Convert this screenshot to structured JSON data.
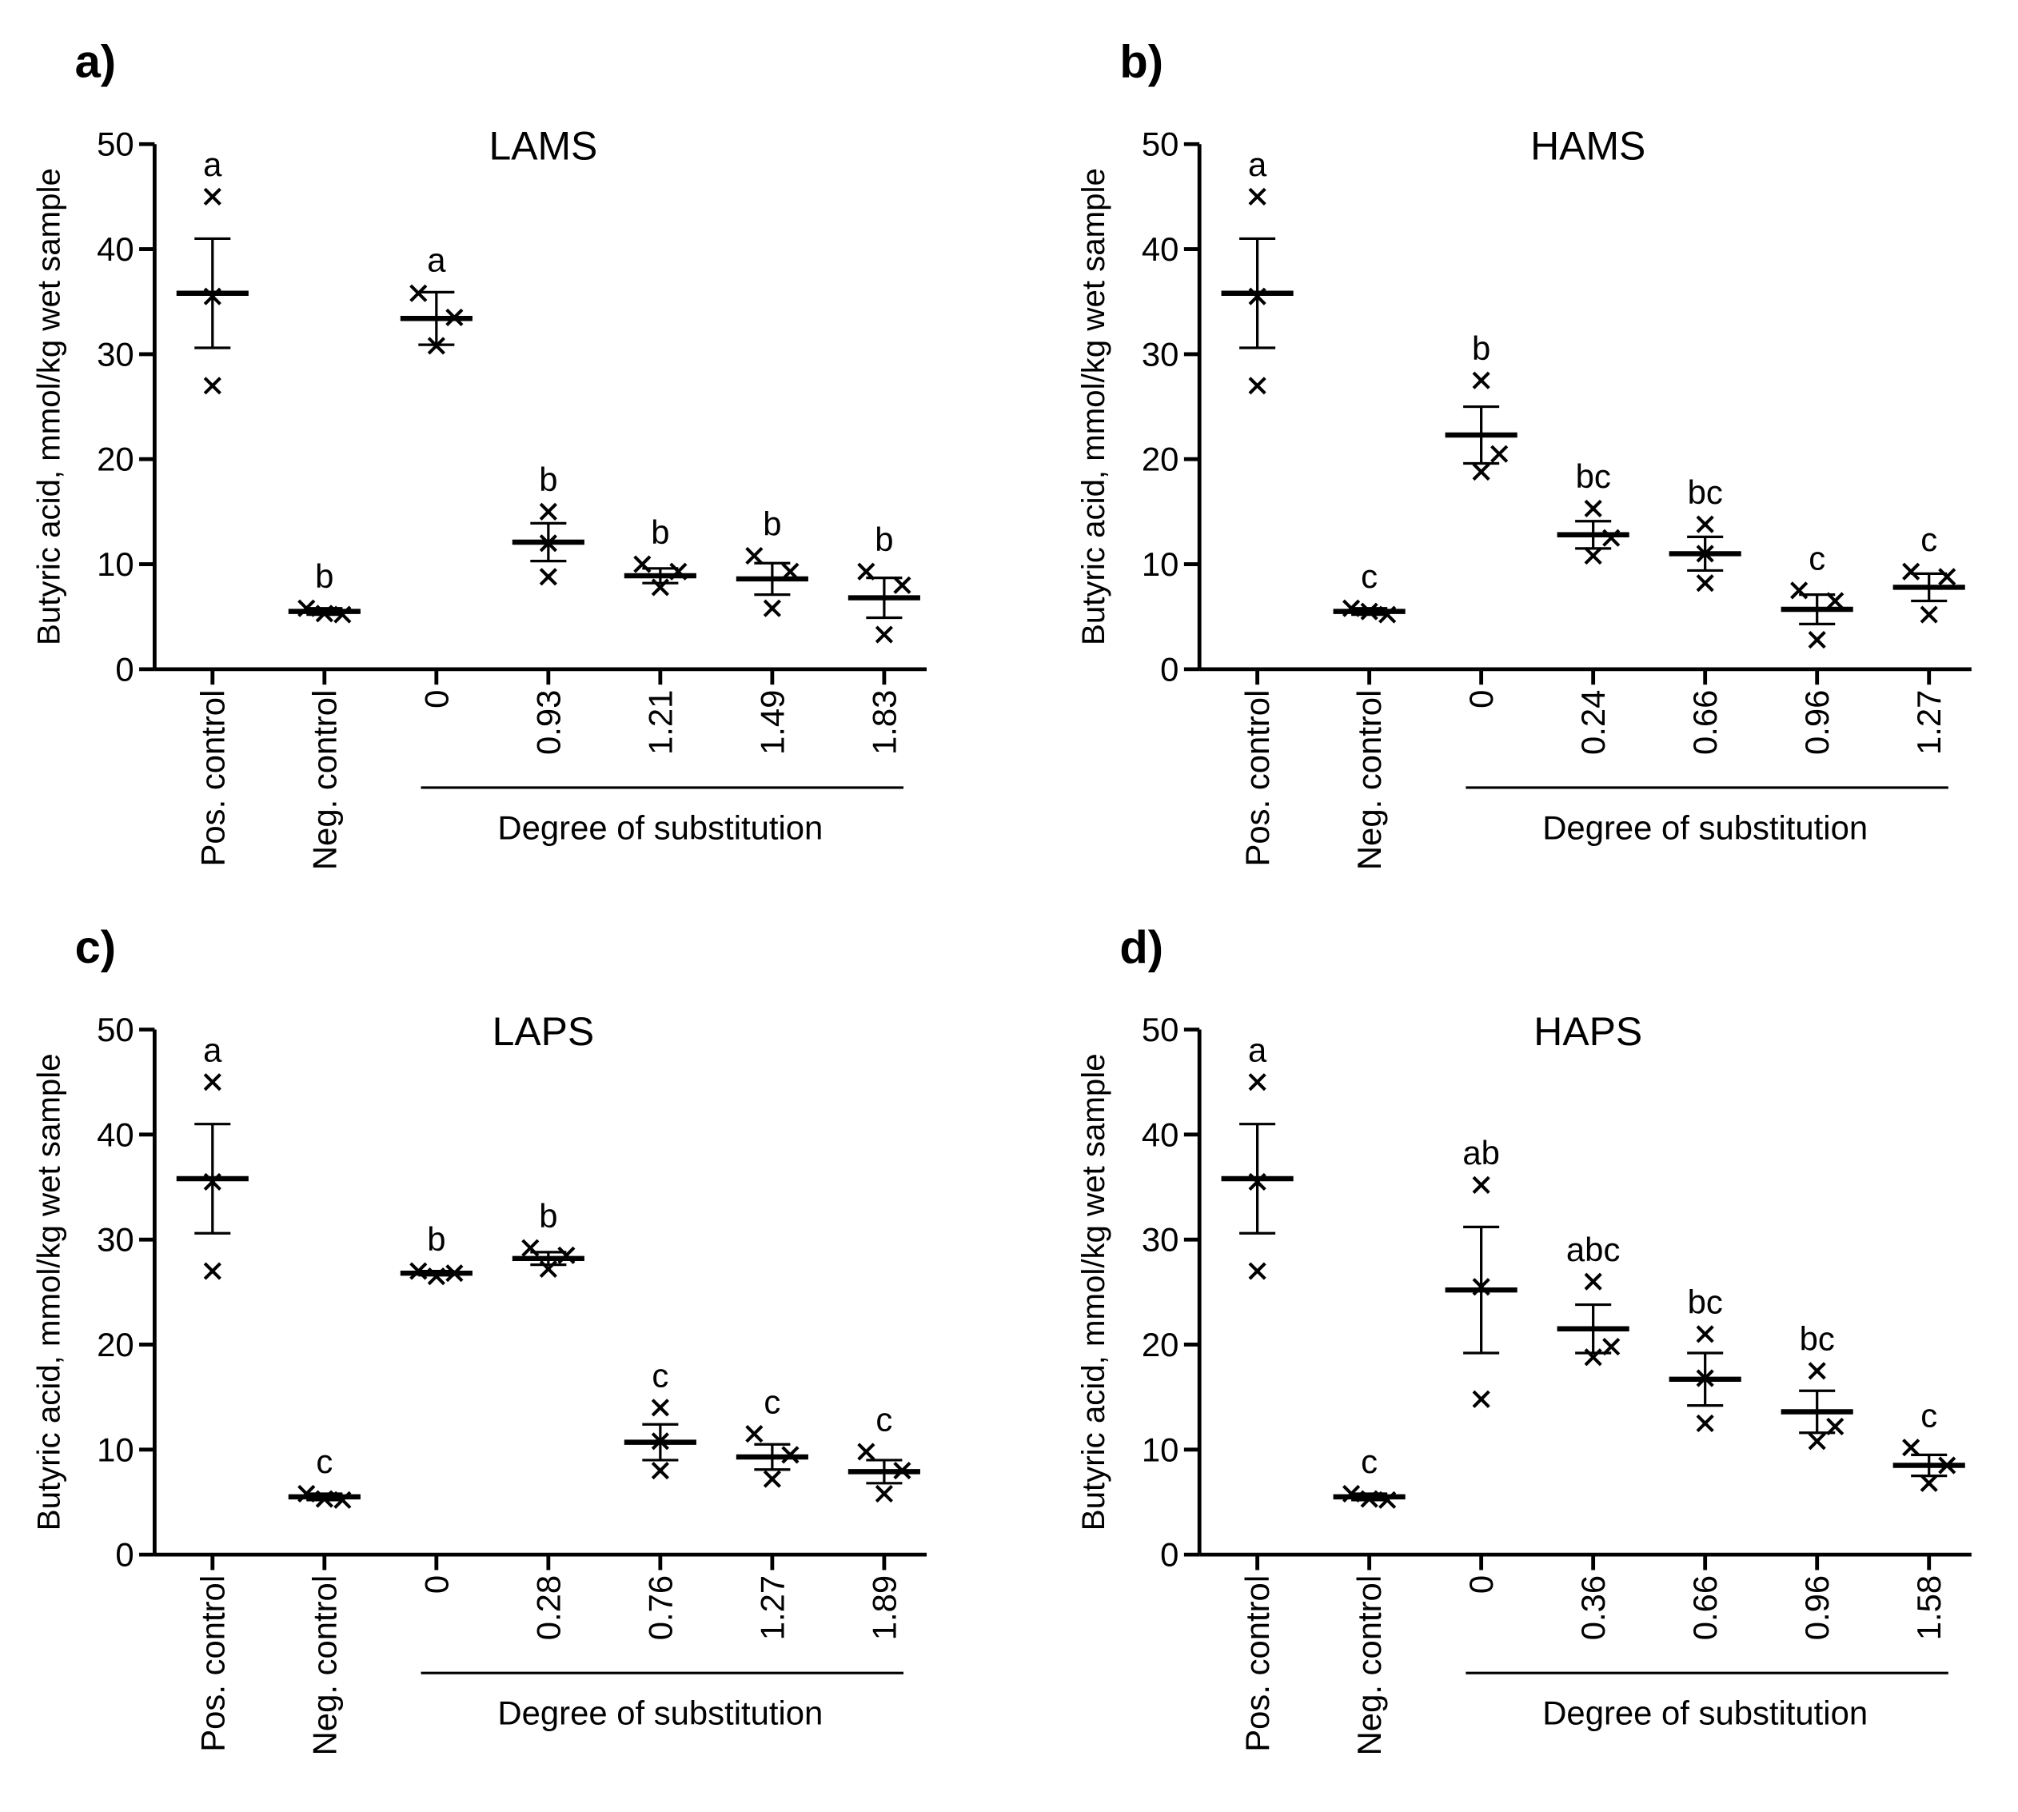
{
  "chart_data": [
    {
      "type": "dot",
      "panel": "a)",
      "title": "LAMS",
      "ylabel": "Butyric acid, mmol/kg wet sample",
      "group_label": "Degree of substitution",
      "categories": [
        "Pos. control",
        "Neg. control",
        "0",
        "0.93",
        "1.21",
        "1.49",
        "1.83"
      ],
      "points": [
        [
          45,
          35.5,
          27
        ],
        [
          5.8,
          5.2,
          5.3
        ],
        [
          35.8,
          33.5,
          30.8
        ],
        [
          15,
          12,
          8.8
        ],
        [
          10,
          9.3,
          7.8
        ],
        [
          10.8,
          9.3,
          5.8
        ],
        [
          9.3,
          8,
          3.3
        ]
      ],
      "means": [
        35.8,
        5.5,
        33.4,
        12.1,
        8.9,
        8.6,
        6.8
      ],
      "errors": [
        5.2,
        0.3,
        2.5,
        1.8,
        0.7,
        1.5,
        1.9
      ],
      "annotations": [
        "a",
        "b",
        "a",
        "b",
        "b",
        "b",
        "b"
      ],
      "ylim": [
        0,
        50
      ],
      "yticks": [
        0,
        10,
        20,
        30,
        40,
        50
      ],
      "color": "#000000"
    },
    {
      "type": "dot",
      "panel": "b)",
      "title": "HAMS",
      "ylabel": "Butyric acid, mmol/kg wet sample",
      "group_label": "Degree of substitution",
      "categories": [
        "Pos. control",
        "Neg. control",
        "0",
        "0.24",
        "0.66",
        "0.96",
        "1.27"
      ],
      "points": [
        [
          45,
          35.5,
          27
        ],
        [
          5.8,
          5.2,
          5.5
        ],
        [
          27.5,
          20.5,
          18.8
        ],
        [
          15.3,
          12.5,
          10.8
        ],
        [
          13.8,
          11,
          8.2
        ],
        [
          7.5,
          6.5,
          2.8
        ],
        [
          9.3,
          8.8,
          5.2
        ]
      ],
      "means": [
        35.8,
        5.5,
        22.3,
        12.8,
        11,
        5.7,
        7.8
      ],
      "errors": [
        5.2,
        0.3,
        2.7,
        1.3,
        1.6,
        1.4,
        1.3
      ],
      "annotations": [
        "a",
        "c",
        "b",
        "bc",
        "bc",
        "c",
        "c"
      ],
      "ylim": [
        0,
        50
      ],
      "yticks": [
        0,
        10,
        20,
        30,
        40,
        50
      ],
      "color": "#000000"
    },
    {
      "type": "dot",
      "panel": "c)",
      "title": "LAPS",
      "ylabel": "Butyric acid, mmol/kg wet sample",
      "group_label": "Degree of substitution",
      "categories": [
        "Pos. control",
        "Neg. control",
        "0",
        "0.28",
        "0.76",
        "1.27",
        "1.89"
      ],
      "points": [
        [
          45,
          35.5,
          27
        ],
        [
          5.8,
          5.2,
          5.3
        ],
        [
          27,
          26.8,
          26.5
        ],
        [
          29.2,
          28.5,
          27.2
        ],
        [
          14,
          10.8,
          8
        ],
        [
          11.5,
          9.5,
          7.2
        ],
        [
          9.8,
          8,
          5.8
        ]
      ],
      "means": [
        35.8,
        5.5,
        26.8,
        28.2,
        10.7,
        9.3,
        7.9
      ],
      "errors": [
        5.2,
        0.3,
        0.2,
        0.6,
        1.7,
        1.2,
        1.1
      ],
      "annotations": [
        "a",
        "c",
        "b",
        "b",
        "c",
        "c",
        "c"
      ],
      "ylim": [
        0,
        50
      ],
      "yticks": [
        0,
        10,
        20,
        30,
        40,
        50
      ],
      "color": "#000000"
    },
    {
      "type": "dot",
      "panel": "d)",
      "title": "HAPS",
      "ylabel": "Butyric acid, mmol/kg wet sample",
      "group_label": "Degree of substitution",
      "categories": [
        "Pos. control",
        "Neg. control",
        "0",
        "0.36",
        "0.66",
        "0.96",
        "1.58"
      ],
      "points": [
        [
          45,
          35.5,
          27
        ],
        [
          5.8,
          5.2,
          5.3
        ],
        [
          35.2,
          25.5,
          14.8
        ],
        [
          26,
          19.8,
          18.8
        ],
        [
          21,
          16.8,
          12.5
        ],
        [
          17.5,
          12.2,
          10.8
        ],
        [
          10.2,
          8.5,
          6.8
        ]
      ],
      "means": [
        35.8,
        5.5,
        25.2,
        21.5,
        16.7,
        13.6,
        8.5
      ],
      "errors": [
        5.2,
        0.3,
        6,
        2.3,
        2.5,
        2,
        1
      ],
      "annotations": [
        "a",
        "c",
        "ab",
        "abc",
        "bc",
        "bc",
        "c"
      ],
      "ylim": [
        0,
        50
      ],
      "yticks": [
        0,
        10,
        20,
        30,
        40,
        50
      ],
      "color": "#000000"
    }
  ]
}
